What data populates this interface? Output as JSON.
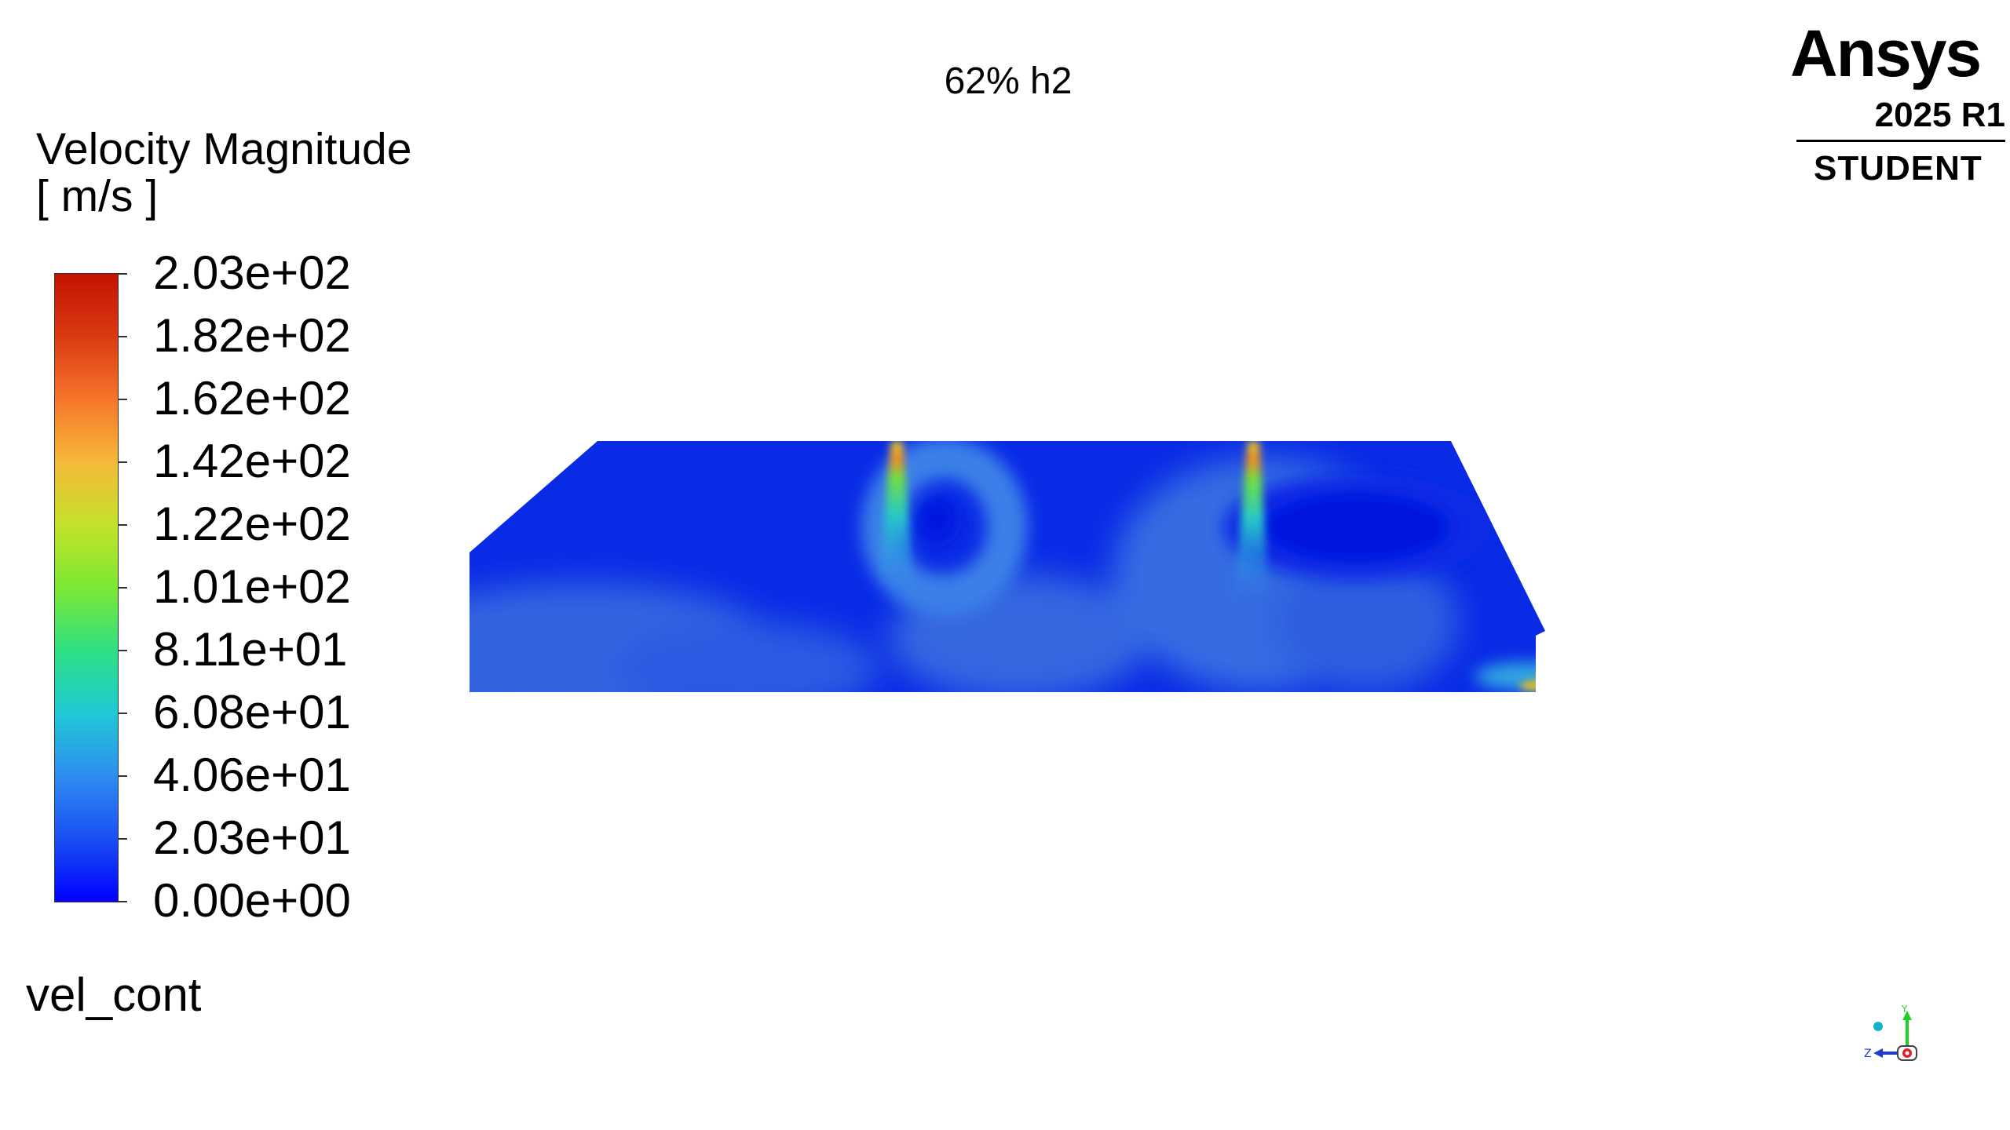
{
  "viewport": {
    "title": "62% h2"
  },
  "legend": {
    "title": "Velocity Magnitude",
    "units": "[ m/s ]",
    "tick_labels": [
      "2.03e+02",
      "1.82e+02",
      "1.62e+02",
      "1.42e+02",
      "1.22e+02",
      "1.01e+02",
      "8.11e+01",
      "6.08e+01",
      "4.06e+01",
      "2.03e+01",
      "0.00e+00"
    ],
    "range": [
      0,
      203
    ],
    "colormap": [
      "#0000ff",
      "#1a4ff2",
      "#2f8cf0",
      "#1fc9d6",
      "#2ee083",
      "#7be833",
      "#c4e22a",
      "#f5b93a",
      "#f7752a",
      "#d93a12",
      "#c41200"
    ]
  },
  "contour": {
    "name": "vel_cont"
  },
  "logo": {
    "brand": "Ansys",
    "version": "2025 R1",
    "edition": "STUDENT"
  },
  "triad": {
    "axis_y": "Y",
    "axis_z": "Z"
  },
  "colors": {
    "domain_base": "#0a2be6",
    "jet_peak": "#e8d020"
  }
}
